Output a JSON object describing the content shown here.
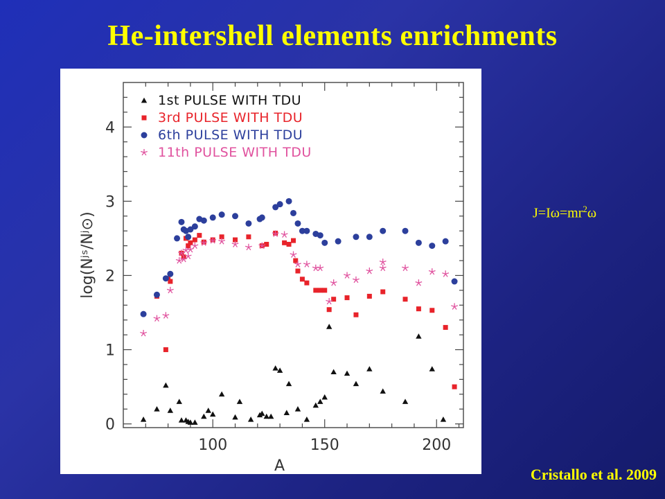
{
  "slide": {
    "title": "He-intershell elements enrichments",
    "formula": {
      "left": "J=Iω=mr",
      "sup": "2",
      "right": "ω"
    },
    "citation": "Cristallo et al. 2009"
  },
  "chart_data": {
    "type": "scatter",
    "xlabel": "A",
    "ylabel": "log(Nʲˢ/Nʲ⊙)",
    "xlim": [
      60,
      212
    ],
    "ylim": [
      -0.05,
      4.6
    ],
    "xticks": [
      100,
      150,
      200
    ],
    "yticks": [
      0,
      1,
      2,
      3,
      4
    ],
    "legend_position": "top-left",
    "grid": false,
    "series": [
      {
        "name": "1st PULSE WITH TDU",
        "marker": "triangle",
        "color": "#111111",
        "points": [
          [
            69,
            0.06
          ],
          [
            75,
            0.2
          ],
          [
            79,
            0.52
          ],
          [
            81,
            0.18
          ],
          [
            85,
            0.3
          ],
          [
            86,
            0.05
          ],
          [
            88,
            0.05
          ],
          [
            89,
            0.03
          ],
          [
            90,
            0.02
          ],
          [
            92,
            0.02
          ],
          [
            96,
            0.1
          ],
          [
            98,
            0.18
          ],
          [
            100,
            0.13
          ],
          [
            104,
            0.4
          ],
          [
            110,
            0.09
          ],
          [
            112,
            0.3
          ],
          [
            117,
            0.06
          ],
          [
            121,
            0.12
          ],
          [
            122,
            0.14
          ],
          [
            124,
            0.1
          ],
          [
            126,
            0.1
          ],
          [
            128,
            0.75
          ],
          [
            130,
            0.72
          ],
          [
            133,
            0.15
          ],
          [
            134,
            0.54
          ],
          [
            138,
            0.2
          ],
          [
            142,
            0.06
          ],
          [
            146,
            0.25
          ],
          [
            148,
            0.3
          ],
          [
            150,
            0.36
          ],
          [
            152,
            1.31
          ],
          [
            154,
            0.7
          ],
          [
            160,
            0.68
          ],
          [
            164,
            0.54
          ],
          [
            170,
            0.74
          ],
          [
            176,
            0.44
          ],
          [
            186,
            0.3
          ],
          [
            192,
            1.18
          ],
          [
            198,
            0.74
          ],
          [
            203,
            0.06
          ]
        ]
      },
      {
        "name": "3rd PULSE WITH TDU",
        "marker": "square",
        "color": "#e8232a",
        "points": [
          [
            75,
            1.72
          ],
          [
            79,
            1.0
          ],
          [
            80,
            1.96
          ],
          [
            81,
            1.92
          ],
          [
            86,
            2.3
          ],
          [
            87,
            2.25
          ],
          [
            88,
            2.5
          ],
          [
            89,
            2.4
          ],
          [
            90,
            2.44
          ],
          [
            92,
            2.48
          ],
          [
            94,
            2.54
          ],
          [
            96,
            2.45
          ],
          [
            100,
            2.48
          ],
          [
            104,
            2.52
          ],
          [
            110,
            2.48
          ],
          [
            116,
            2.52
          ],
          [
            122,
            2.4
          ],
          [
            124,
            2.42
          ],
          [
            128,
            2.57
          ],
          [
            132,
            2.44
          ],
          [
            134,
            2.42
          ],
          [
            136,
            2.47
          ],
          [
            137,
            2.2
          ],
          [
            138,
            2.06
          ],
          [
            140,
            1.95
          ],
          [
            142,
            1.9
          ],
          [
            146,
            1.8
          ],
          [
            148,
            1.8
          ],
          [
            150,
            1.8
          ],
          [
            152,
            1.54
          ],
          [
            154,
            1.68
          ],
          [
            160,
            1.7
          ],
          [
            164,
            1.47
          ],
          [
            170,
            1.72
          ],
          [
            176,
            1.78
          ],
          [
            186,
            1.68
          ],
          [
            192,
            1.55
          ],
          [
            198,
            1.53
          ],
          [
            204,
            1.3
          ],
          [
            208,
            0.5
          ]
        ]
      },
      {
        "name": "6th PULSE WITH TDU",
        "marker": "circle",
        "color": "#2c3f9c",
        "points": [
          [
            69,
            1.48
          ],
          [
            75,
            1.74
          ],
          [
            79,
            1.96
          ],
          [
            81,
            2.02
          ],
          [
            84,
            2.5
          ],
          [
            86,
            2.72
          ],
          [
            87,
            2.62
          ],
          [
            88,
            2.6
          ],
          [
            89,
            2.52
          ],
          [
            90,
            2.62
          ],
          [
            92,
            2.66
          ],
          [
            94,
            2.76
          ],
          [
            96,
            2.74
          ],
          [
            100,
            2.78
          ],
          [
            104,
            2.82
          ],
          [
            110,
            2.8
          ],
          [
            116,
            2.7
          ],
          [
            121,
            2.76
          ],
          [
            122,
            2.78
          ],
          [
            128,
            2.92
          ],
          [
            130,
            2.96
          ],
          [
            134,
            3.0
          ],
          [
            136,
            2.84
          ],
          [
            138,
            2.7
          ],
          [
            140,
            2.6
          ],
          [
            142,
            2.6
          ],
          [
            146,
            2.56
          ],
          [
            148,
            2.54
          ],
          [
            150,
            2.44
          ],
          [
            156,
            2.46
          ],
          [
            164,
            2.52
          ],
          [
            170,
            2.52
          ],
          [
            176,
            2.6
          ],
          [
            186,
            2.6
          ],
          [
            192,
            2.44
          ],
          [
            198,
            2.4
          ],
          [
            204,
            2.46
          ],
          [
            208,
            1.92
          ]
        ]
      },
      {
        "name": "11th PULSE WITH TDU",
        "marker": "star",
        "color": "#e0529e",
        "points": [
          [
            69,
            1.22
          ],
          [
            75,
            1.42
          ],
          [
            79,
            1.46
          ],
          [
            81,
            1.8
          ],
          [
            85,
            2.2
          ],
          [
            86,
            2.3
          ],
          [
            87,
            2.22
          ],
          [
            88,
            2.34
          ],
          [
            89,
            2.26
          ],
          [
            90,
            2.35
          ],
          [
            92,
            2.4
          ],
          [
            96,
            2.44
          ],
          [
            100,
            2.47
          ],
          [
            104,
            2.46
          ],
          [
            110,
            2.42
          ],
          [
            116,
            2.38
          ],
          [
            122,
            2.4
          ],
          [
            128,
            2.56
          ],
          [
            132,
            2.55
          ],
          [
            136,
            2.28
          ],
          [
            138,
            2.15
          ],
          [
            142,
            2.15
          ],
          [
            146,
            2.1
          ],
          [
            148,
            2.1
          ],
          [
            152,
            1.65
          ],
          [
            154,
            1.9
          ],
          [
            160,
            2.0
          ],
          [
            164,
            1.94
          ],
          [
            170,
            2.06
          ],
          [
            176,
            2.18
          ],
          [
            176,
            2.1
          ],
          [
            186,
            2.1
          ],
          [
            192,
            1.9
          ],
          [
            198,
            2.05
          ],
          [
            204,
            2.02
          ],
          [
            208,
            1.58
          ]
        ]
      }
    ]
  }
}
